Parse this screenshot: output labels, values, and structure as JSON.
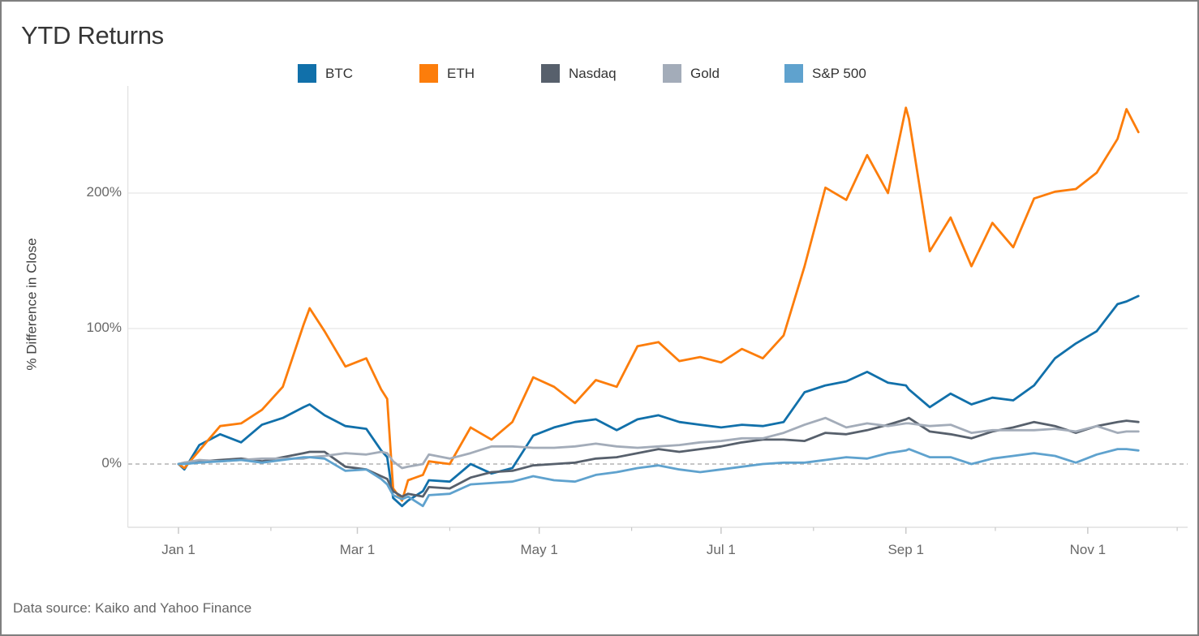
{
  "title": "YTD Returns",
  "caption": "Data source: Kaiko and Yahoo Finance",
  "chart_data": {
    "type": "line",
    "title": "YTD Returns",
    "xlabel": "",
    "ylabel": "% Difference in Close",
    "legend_position": "top",
    "grid": {
      "y_gridlines": [
        100,
        200
      ],
      "zero_line_dashed": true
    },
    "ylim": [
      -47,
      280
    ],
    "x_unit": "day_of_year_2020",
    "xlim_days": [
      -17,
      338
    ],
    "y_ticks": [
      {
        "label": "0%",
        "value": 0
      },
      {
        "label": "100%",
        "value": 100
      },
      {
        "label": "200%",
        "value": 200
      }
    ],
    "x_ticks": [
      {
        "label": "Jan 1",
        "day": 0
      },
      {
        "label": "Mar 1",
        "day": 60
      },
      {
        "label": "May 1",
        "day": 121
      },
      {
        "label": "Jul 1",
        "day": 182
      },
      {
        "label": "Sep 1",
        "day": 244
      },
      {
        "label": "Nov 1",
        "day": 305
      }
    ],
    "minor_tick_days": [
      31,
      91,
      152,
      213,
      274,
      335
    ],
    "x_days": [
      0,
      2,
      7,
      14,
      21,
      28,
      35,
      42,
      44,
      49,
      56,
      63,
      68,
      70,
      72,
      75,
      77,
      82,
      84,
      91,
      98,
      105,
      112,
      119,
      126,
      133,
      140,
      147,
      154,
      161,
      168,
      175,
      182,
      189,
      196,
      203,
      210,
      217,
      224,
      231,
      238,
      244,
      245,
      252,
      259,
      266,
      273,
      280,
      287,
      294,
      301,
      308,
      315,
      318,
      322
    ],
    "series": [
      {
        "name": "BTC",
        "color": "#1170aa",
        "values": [
          0,
          -4,
          14,
          22,
          16,
          29,
          34,
          42,
          44,
          36,
          28,
          26,
          10,
          5,
          -25,
          -31,
          -27,
          -20,
          -12,
          -13,
          0,
          -7,
          -3,
          21,
          27,
          31,
          33,
          25,
          33,
          36,
          31,
          29,
          27,
          29,
          28,
          31,
          53,
          58,
          61,
          68,
          60,
          58,
          55,
          42,
          52,
          44,
          49,
          47,
          58,
          78,
          89,
          98,
          118,
          120,
          124
        ]
      },
      {
        "name": "ETH",
        "color": "#fc7d0b",
        "values": [
          0,
          -3,
          10,
          28,
          30,
          40,
          57,
          103,
          115,
          98,
          72,
          78,
          55,
          48,
          -18,
          -27,
          -12,
          -8,
          2,
          0,
          27,
          18,
          31,
          64,
          57,
          45,
          62,
          57,
          87,
          90,
          76,
          79,
          75,
          85,
          78,
          95,
          146,
          204,
          195,
          228,
          200,
          263,
          255,
          157,
          182,
          146,
          178,
          160,
          196,
          201,
          203,
          215,
          240,
          262,
          245
        ]
      },
      {
        "name": "Nasdaq",
        "color": "#57606c",
        "values": [
          0,
          1,
          2,
          3,
          4,
          2,
          5,
          8,
          9,
          9,
          -2,
          -4,
          -9,
          -11,
          -20,
          -24,
          -22,
          -24,
          -17,
          -18,
          -10,
          -6,
          -5,
          -1,
          0,
          1,
          4,
          5,
          8,
          11,
          9,
          11,
          13,
          16,
          18,
          18,
          17,
          23,
          22,
          25,
          29,
          33,
          34,
          24,
          22,
          19,
          24,
          27,
          31,
          28,
          23,
          28,
          31,
          32,
          31
        ]
      },
      {
        "name": "Gold",
        "color": "#a3acb9",
        "values": [
          0,
          1,
          3,
          2,
          3,
          4,
          4,
          4,
          5,
          6,
          8,
          7,
          9,
          8,
          2,
          -3,
          -2,
          0,
          7,
          4,
          8,
          13,
          13,
          12,
          12,
          13,
          15,
          13,
          12,
          13,
          14,
          16,
          17,
          19,
          19,
          23,
          29,
          34,
          27,
          30,
          28,
          30,
          30,
          28,
          29,
          23,
          25,
          25,
          25,
          26,
          24,
          28,
          23,
          24,
          24
        ]
      },
      {
        "name": "S&P 500",
        "color": "#5fa2ce",
        "values": [
          0,
          0,
          1,
          2,
          3,
          1,
          3,
          5,
          5,
          4,
          -5,
          -4,
          -11,
          -15,
          -23,
          -26,
          -24,
          -31,
          -23,
          -22,
          -15,
          -14,
          -13,
          -9,
          -12,
          -13,
          -8,
          -6,
          -3,
          -1,
          -4,
          -6,
          -4,
          -2,
          0,
          1,
          1,
          3,
          5,
          4,
          8,
          10,
          11,
          5,
          5,
          0,
          4,
          6,
          8,
          6,
          1,
          7,
          11,
          11,
          10
        ]
      }
    ],
    "style": {
      "line_width": 2.8,
      "gridline_color": "#ececec",
      "zero_line_color": "#b3b3b3",
      "axis_line_color": "#e1e1e1",
      "tick_mark_color": "#c9c9c9"
    }
  }
}
